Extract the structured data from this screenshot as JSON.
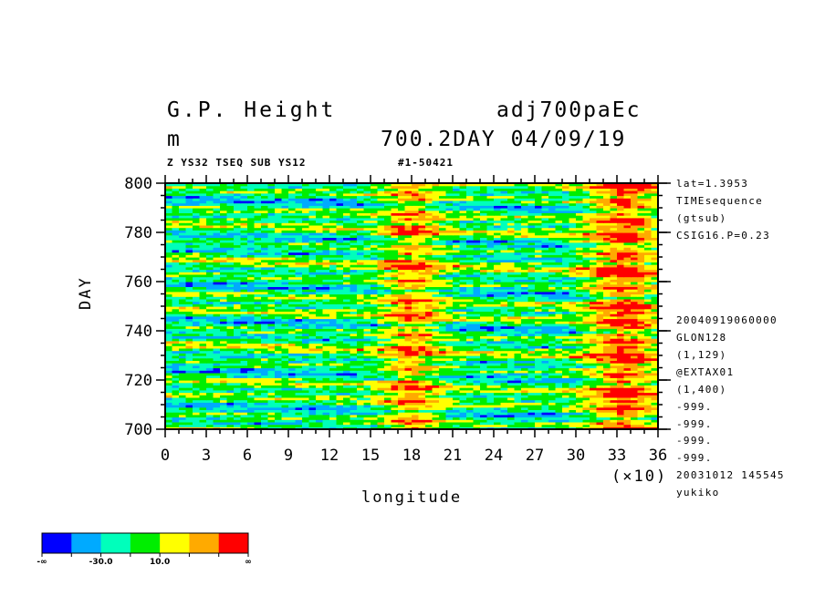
{
  "header": {
    "title_left": "G.P. Height",
    "units": "m",
    "title_right": "adj700paEc",
    "subtitle_right": "700.2DAY 04/09/19",
    "info_left": "Z YS32 TSEQ SUB YS12",
    "info_id": "#1-50421"
  },
  "side_info": {
    "top": [
      "lat=1.3953",
      "TIMEsequence",
      "(gtsub)",
      "CSIG16.P=0.23"
    ],
    "bottom": [
      "20040919060000",
      "GLON128",
      "(1,129)",
      "@EXTAX01",
      "(1,400)",
      "-999.",
      "-999.",
      "-999.",
      "-999.",
      "20031012 145545",
      "yukiko"
    ]
  },
  "chart_data": {
    "type": "heatmap",
    "title": "G.P. Height",
    "units": "m",
    "xlabel": "longitude",
    "ylabel": "DAY",
    "x_scale_note": "(×10)",
    "xlim": [
      0,
      36
    ],
    "ylim": [
      700,
      800
    ],
    "x_ticks": [
      "0",
      "3",
      "6",
      "9",
      "12",
      "15",
      "18",
      "21",
      "24",
      "27",
      "30",
      "33",
      "36"
    ],
    "y_ticks": [
      "700",
      "720",
      "740",
      "760",
      "780",
      "800"
    ],
    "colorbar": {
      "colors": [
        "#0000ff",
        "#00aaff",
        "#00ffbb",
        "#00ee00",
        "#ffff00",
        "#ffaa00",
        "#ff0000"
      ],
      "labels": [
        "-∞",
        "-30.0",
        "10.0",
        "∞"
      ],
      "label_bin_index": [
        0,
        2,
        4,
        7
      ]
    },
    "structure": {
      "description_bands_x": [
        {
          "x_from": 0,
          "x_to": 15,
          "dominant": "green/cyan"
        },
        {
          "x_from": 15,
          "x_to": 21,
          "dominant": "yellow/orange with red patches"
        },
        {
          "x_from": 21,
          "x_to": 30,
          "dominant": "green/cyan"
        },
        {
          "x_from": 30,
          "x_to": 36,
          "dominant": "yellow/orange with red patches"
        }
      ]
    }
  }
}
